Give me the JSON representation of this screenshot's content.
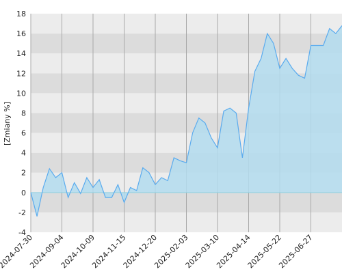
{
  "chart_data": {
    "type": "area",
    "y_label": "[Zmiany %]",
    "x": [
      "2024-07-30",
      "2024-08-06",
      "2024-08-13",
      "2024-08-21",
      "2024-08-28",
      "2024-09-04",
      "2024-09-11",
      "2024-09-18",
      "2024-09-25",
      "2024-10-02",
      "2024-10-09",
      "2024-10-16",
      "2024-10-23",
      "2024-10-30",
      "2024-11-07",
      "2024-11-15",
      "2024-11-22",
      "2024-11-29",
      "2024-12-06",
      "2024-12-13",
      "2024-12-20",
      "2025-01-02",
      "2025-01-10",
      "2025-01-17",
      "2025-01-24",
      "2025-02-03",
      "2025-02-10",
      "2025-02-17",
      "2025-02-24",
      "2025-03-03",
      "2025-03-10",
      "2025-03-17",
      "2025-03-24",
      "2025-03-31",
      "2025-04-07",
      "2025-04-14",
      "2025-04-23",
      "2025-04-30",
      "2025-05-08",
      "2025-05-15",
      "2025-05-22",
      "2025-05-29",
      "2025-06-05",
      "2025-06-12",
      "2025-06-20",
      "2025-06-27",
      "2025-07-04",
      "2025-07-11",
      "2025-07-18",
      "2025-07-25",
      "2025-07-31"
    ],
    "values": [
      0,
      -2.4,
      0.5,
      2.4,
      1.5,
      2.0,
      -0.5,
      1.0,
      -0.1,
      1.5,
      0.5,
      1.3,
      -0.5,
      -0.5,
      0.8,
      -1.0,
      0.5,
      0.2,
      2.5,
      2.0,
      0.8,
      1.5,
      1.2,
      3.5,
      3.2,
      3.0,
      6.0,
      7.5,
      7.0,
      5.5,
      4.5,
      8.2,
      8.5,
      8.0,
      3.5,
      8.5,
      12.2,
      13.5,
      16.0,
      15.0,
      12.5,
      13.5,
      12.5,
      11.8,
      11.5,
      14.8,
      14.8,
      14.8,
      16.5,
      16.0,
      16.8
    ],
    "xticks": [
      "2024-07-30",
      "2024-09-04",
      "2024-10-09",
      "2024-11-15",
      "2024-12-20",
      "2025-02-03",
      "2025-03-10",
      "2025-04-14",
      "2025-05-22",
      "2025-06-27"
    ],
    "ylim": [
      -4,
      18
    ],
    "yticks": [
      -4,
      -2,
      0,
      2,
      4,
      6,
      8,
      10,
      12,
      14,
      16,
      18
    ],
    "line_color": "#5aabee",
    "fill_color": "#b3dcef",
    "grid": true
  }
}
